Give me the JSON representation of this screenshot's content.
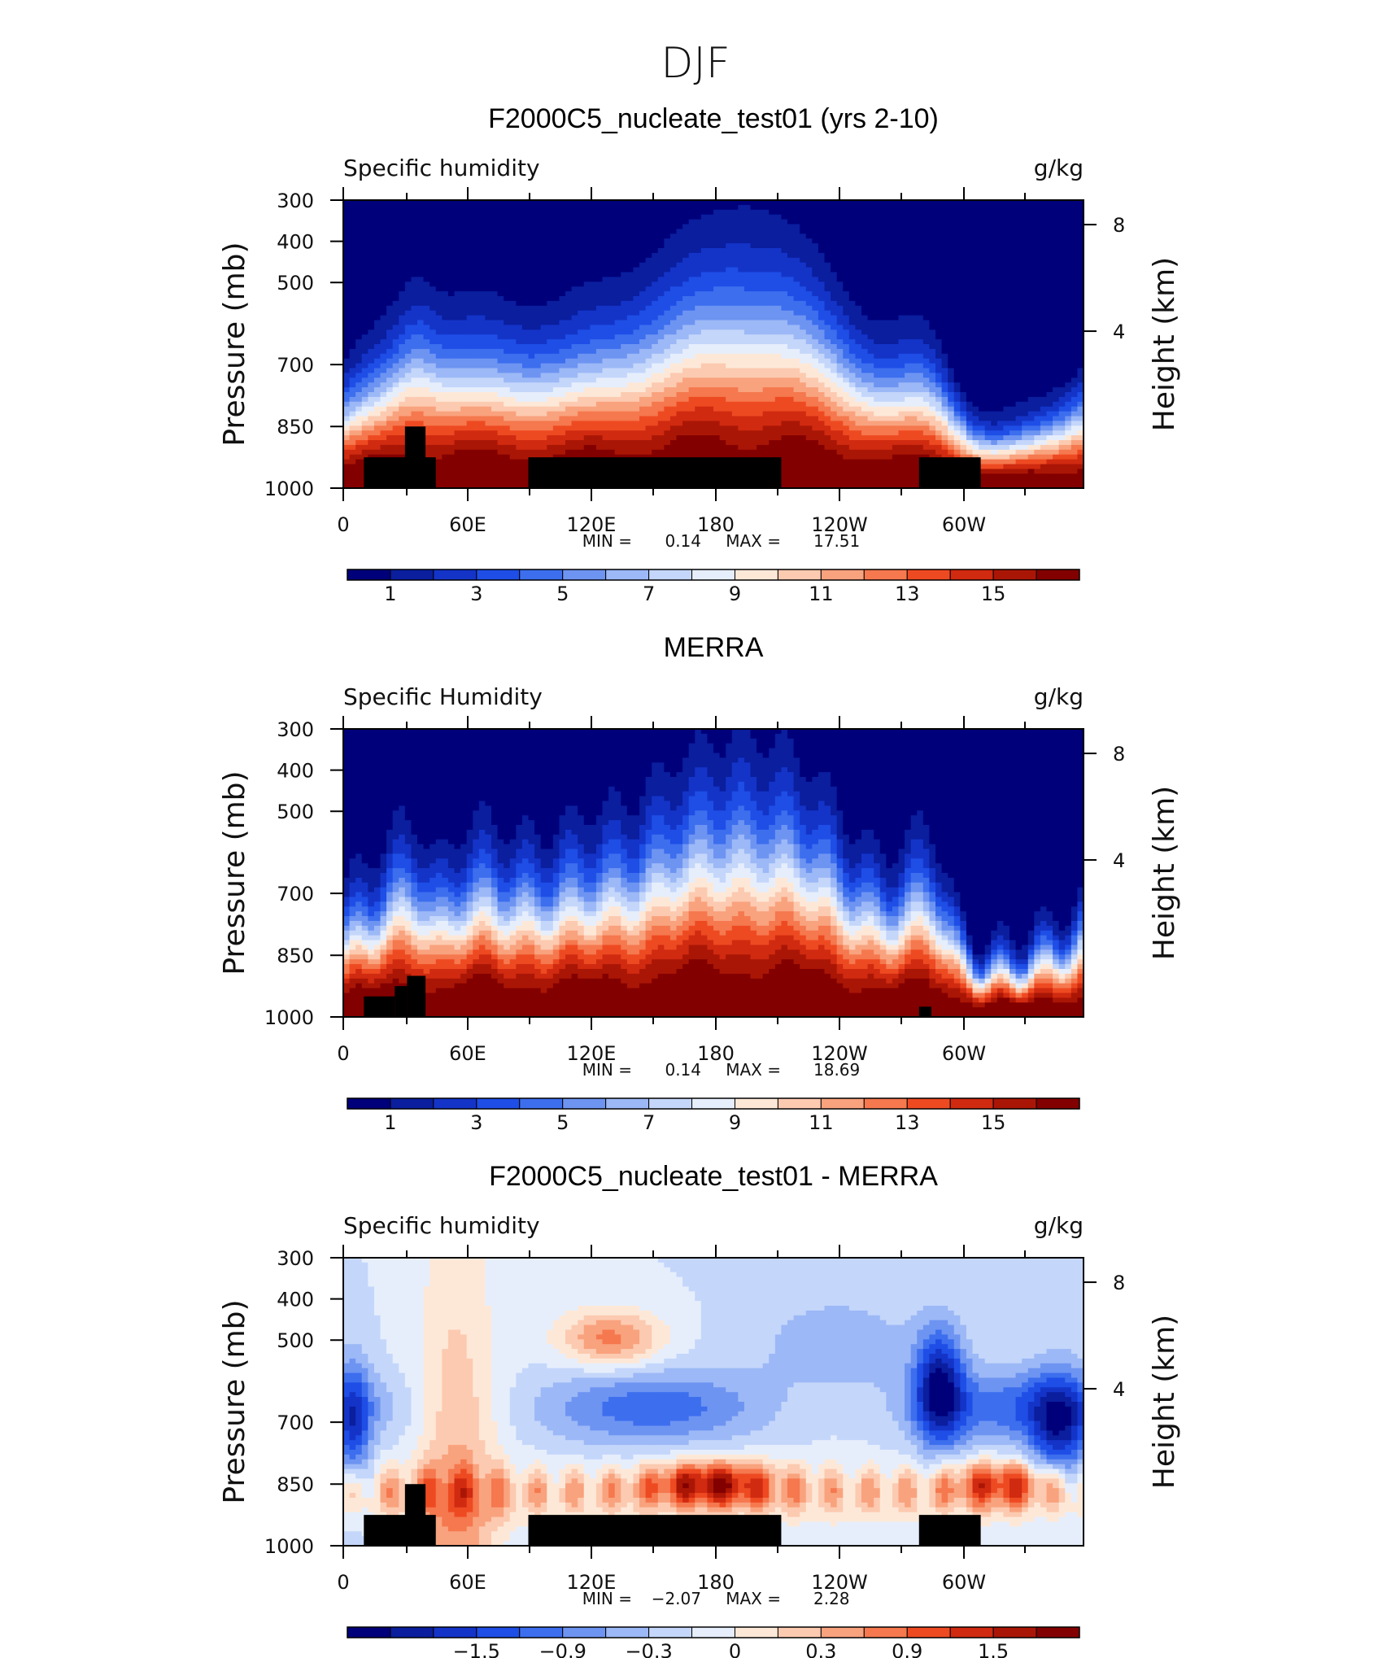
{
  "figure_title": "DJF",
  "chart_data": [
    {
      "type": "heatmap",
      "panel_title": "F2000C5_nucleate_test01 (yrs 2-10)",
      "variable_label": "Specific humidity",
      "units": "g/kg",
      "ylabel_left": "Pressure (mb)",
      "ylabel_right": "Height (km)",
      "x_range": [
        0,
        360
      ],
      "x_ticks": [
        "0",
        "60E",
        "120E",
        "180",
        "120W",
        "60W"
      ],
      "y_ticks_pressure": [
        "300",
        "400",
        "500",
        "700",
        "850",
        "1000"
      ],
      "y_ticks_height": [
        "8",
        "4"
      ],
      "min_label": "MIN =",
      "min_value": "0.14",
      "max_label": "MAX =",
      "max_value": "17.51",
      "colorbar_labels": [
        "1",
        "3",
        "5",
        "7",
        "9",
        "11",
        "13",
        "15"
      ],
      "colorbar_levels": [
        0,
        1,
        2,
        3,
        4,
        5,
        6,
        7,
        8,
        9,
        10,
        11,
        12,
        13,
        14,
        15,
        16
      ],
      "topography": [
        {
          "lon0": 10,
          "lon1": 45,
          "p_top": 925
        },
        {
          "lon0": 30,
          "lon1": 40,
          "p_top": 850
        },
        {
          "lon0": 90,
          "lon1": 213,
          "p_top": 925
        },
        {
          "lon0": 280,
          "lon1": 310,
          "p_top": 925
        }
      ]
    },
    {
      "type": "heatmap",
      "panel_title": "MERRA",
      "variable_label": "Specific Humidity",
      "units": "g/kg",
      "ylabel_left": "Pressure (mb)",
      "ylabel_right": "Height (km)",
      "x_range": [
        0,
        360
      ],
      "x_ticks": [
        "0",
        "60E",
        "120E",
        "180",
        "120W",
        "60W"
      ],
      "y_ticks_pressure": [
        "300",
        "400",
        "500",
        "700",
        "850",
        "1000"
      ],
      "y_ticks_height": [
        "8",
        "4"
      ],
      "min_label": "MIN =",
      "min_value": "0.14",
      "max_label": "MAX =",
      "max_value": "18.69",
      "colorbar_labels": [
        "1",
        "3",
        "5",
        "7",
        "9",
        "11",
        "13",
        "15"
      ],
      "colorbar_levels": [
        0,
        1,
        2,
        3,
        4,
        5,
        6,
        7,
        8,
        9,
        10,
        11,
        12,
        13,
        14,
        15,
        16
      ],
      "topography": [
        {
          "lon0": 10,
          "lon1": 25,
          "p_top": 950
        },
        {
          "lon0": 25,
          "lon1": 31,
          "p_top": 925
        },
        {
          "lon0": 31,
          "lon1": 40,
          "p_top": 900
        },
        {
          "lon0": 280,
          "lon1": 286,
          "p_top": 975
        }
      ]
    },
    {
      "type": "heatmap",
      "panel_title": "F2000C5_nucleate_test01 - MERRA",
      "variable_label": "Specific humidity",
      "units": "g/kg",
      "ylabel_left": "Pressure (mb)",
      "ylabel_right": "Height (km)",
      "x_range": [
        0,
        360
      ],
      "x_ticks": [
        "0",
        "60E",
        "120E",
        "180",
        "120W",
        "60W"
      ],
      "y_ticks_pressure": [
        "300",
        "400",
        "500",
        "700",
        "850",
        "1000"
      ],
      "y_ticks_height": [
        "8",
        "4"
      ],
      "min_label": "MIN =",
      "min_value": "−2.07",
      "max_label": "MAX =",
      "max_value": "2.28",
      "colorbar_labels": [
        "−1.5",
        "−0.9",
        "−0.3",
        "0",
        "0.3",
        "0.9",
        "1.5"
      ],
      "colorbar_levels": [
        -2.4,
        -2.1,
        -1.8,
        -1.5,
        -1.2,
        -0.9,
        -0.6,
        -0.3,
        0,
        0.3,
        0.6,
        0.9,
        1.2,
        1.5,
        1.8,
        2.1,
        2.4
      ],
      "topography": [
        {
          "lon0": 10,
          "lon1": 45,
          "p_top": 925
        },
        {
          "lon0": 30,
          "lon1": 40,
          "p_top": 850
        },
        {
          "lon0": 90,
          "lon1": 213,
          "p_top": 925
        },
        {
          "lon0": 280,
          "lon1": 310,
          "p_top": 925
        }
      ]
    }
  ],
  "palette": [
    "#00007a",
    "#0a1e9e",
    "#1434c8",
    "#1e4ee6",
    "#3c6eee",
    "#6e94f2",
    "#9cb8f6",
    "#c4d6fa",
    "#e6eefc",
    "#fde8d8",
    "#fccab0",
    "#f9a27e",
    "#f5784e",
    "#ee4a22",
    "#d02a10",
    "#aa1606",
    "#830000"
  ]
}
